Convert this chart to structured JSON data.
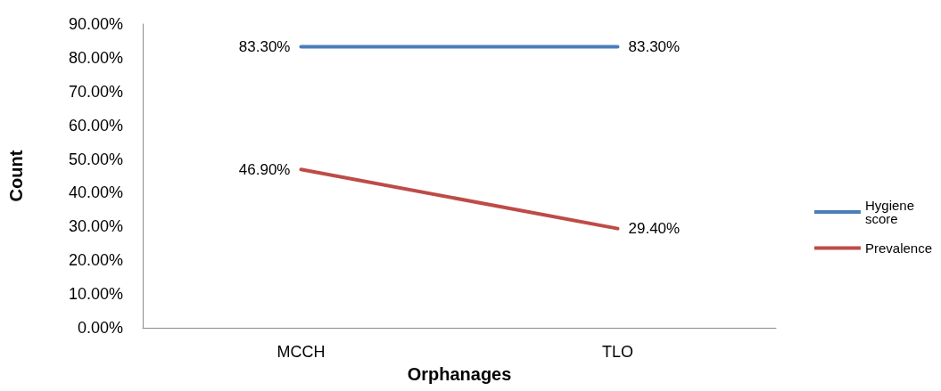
{
  "chart_data": {
    "type": "line",
    "xlabel": "Orphanages",
    "ylabel": "Count",
    "categories": [
      "MCCH",
      "TLO"
    ],
    "series": [
      {
        "name": "Hygiene score",
        "color": "#4a7ebb",
        "values": [
          83.3,
          83.3
        ],
        "value_labels": [
          "83.30%",
          "83.30%"
        ]
      },
      {
        "name": "Prevalence",
        "color": "#be4b48",
        "values": [
          46.9,
          29.4
        ],
        "value_labels": [
          "46.90%",
          "29.40%"
        ]
      }
    ],
    "ylim": [
      0,
      90
    ],
    "yticks": [
      {
        "value": 0,
        "label": "0.00%"
      },
      {
        "value": 10,
        "label": "10.00%"
      },
      {
        "value": 20,
        "label": "20.00%"
      },
      {
        "value": 30,
        "label": "30.00%"
      },
      {
        "value": 40,
        "label": "40.00%"
      },
      {
        "value": 50,
        "label": "50.00%"
      },
      {
        "value": 60,
        "label": "60.00%"
      },
      {
        "value": 70,
        "label": "70.00%"
      },
      {
        "value": 80,
        "label": "80.00%"
      },
      {
        "value": 90,
        "label": "90.00%"
      }
    ],
    "grid": false,
    "legend": "right",
    "marker": "none",
    "line_style": "solid"
  }
}
